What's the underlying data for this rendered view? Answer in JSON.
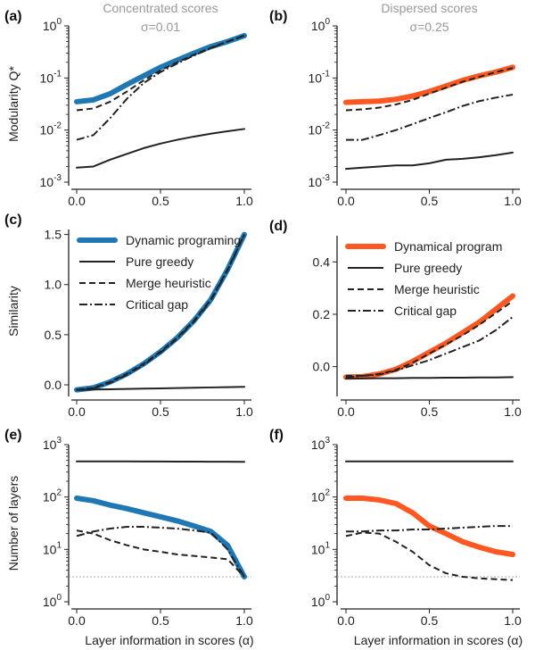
{
  "chart_data": [
    {
      "panel": "(a)",
      "type": "line",
      "title": "Concentrated scores",
      "subtitle": "σ=0.01",
      "ylabel": "Modularity Q*",
      "xlabel": "",
      "yscale": "log",
      "ylim": [
        0.001,
        1
      ],
      "yticks": [
        "10^0",
        "10^-1",
        "10^-2",
        "10^-3"
      ],
      "xticks": [
        "0.0",
        "0.5",
        "1.0"
      ],
      "x": [
        0,
        0.1,
        0.2,
        0.3,
        0.4,
        0.5,
        0.6,
        0.7,
        0.8,
        0.9,
        1.0
      ],
      "series": [
        {
          "name": "Dynamic programing",
          "style": "thick",
          "color": "#1f77b4",
          "values": [
            0.035,
            0.038,
            0.05,
            0.075,
            0.11,
            0.16,
            0.22,
            0.3,
            0.4,
            0.5,
            0.65
          ]
        },
        {
          "name": "Pure greedy",
          "style": "solid",
          "values": [
            0.0019,
            0.002,
            0.0027,
            0.0035,
            0.0045,
            0.0055,
            0.0065,
            0.0075,
            0.0085,
            0.0095,
            0.0105
          ]
        },
        {
          "name": "Merge heuristic",
          "style": "dashed",
          "values": [
            0.024,
            0.026,
            0.035,
            0.055,
            0.09,
            0.14,
            0.2,
            0.28,
            0.38,
            0.5,
            0.65
          ]
        },
        {
          "name": "Critical gap",
          "style": "dashdot",
          "values": [
            0.0065,
            0.008,
            0.017,
            0.04,
            0.08,
            0.13,
            0.19,
            0.27,
            0.37,
            0.5,
            0.65
          ]
        }
      ]
    },
    {
      "panel": "(b)",
      "type": "line",
      "title": "Dispersed scores",
      "subtitle": "σ=0.25",
      "ylabel": "",
      "xlabel": "",
      "yscale": "log",
      "ylim": [
        0.001,
        1
      ],
      "yticks": [
        "10^0",
        "10^-1",
        "10^-2",
        "10^-3"
      ],
      "xticks": [
        "0.0",
        "0.5",
        "1.0"
      ],
      "x": [
        0,
        0.1,
        0.2,
        0.3,
        0.4,
        0.5,
        0.6,
        0.7,
        0.8,
        0.9,
        1.0
      ],
      "series": [
        {
          "name": "Dynamical program",
          "style": "thick",
          "color": "#ff5722",
          "values": [
            0.034,
            0.035,
            0.036,
            0.039,
            0.045,
            0.055,
            0.07,
            0.09,
            0.11,
            0.13,
            0.16
          ]
        },
        {
          "name": "Pure greedy",
          "style": "solid",
          "values": [
            0.0018,
            0.0019,
            0.002,
            0.0021,
            0.0021,
            0.0023,
            0.0027,
            0.0028,
            0.003,
            0.0033,
            0.0037
          ]
        },
        {
          "name": "Merge heuristic",
          "style": "dashed",
          "values": [
            0.024,
            0.025,
            0.027,
            0.031,
            0.038,
            0.05,
            0.065,
            0.085,
            0.105,
            0.13,
            0.155
          ]
        },
        {
          "name": "Critical gap",
          "style": "dashdot",
          "values": [
            0.0065,
            0.0065,
            0.008,
            0.01,
            0.013,
            0.017,
            0.022,
            0.029,
            0.036,
            0.042,
            0.048
          ]
        }
      ]
    },
    {
      "panel": "(c)",
      "type": "line",
      "ylabel": "Similarity",
      "xlabel": "",
      "yscale": "linear",
      "ylim": [
        -0.08,
        1.55
      ],
      "yticks": [
        "0.0",
        "0.5",
        "1.0",
        "1.5"
      ],
      "xticks": [
        "0.0",
        "0.5",
        "1.0"
      ],
      "legend": "top-left",
      "x": [
        0,
        0.1,
        0.2,
        0.3,
        0.4,
        0.5,
        0.6,
        0.7,
        0.8,
        0.9,
        1.0
      ],
      "series": [
        {
          "name": "Dynamic programing",
          "style": "thick",
          "color": "#1f77b4",
          "values": [
            -0.05,
            -0.03,
            0.03,
            0.11,
            0.21,
            0.33,
            0.47,
            0.64,
            0.85,
            1.15,
            1.5
          ]
        },
        {
          "name": "Pure greedy",
          "style": "solid",
          "values": [
            -0.05,
            -0.047,
            -0.044,
            -0.041,
            -0.038,
            -0.035,
            -0.032,
            -0.029,
            -0.026,
            -0.023,
            -0.02
          ]
        },
        {
          "name": "Merge heuristic",
          "style": "dashed",
          "values": [
            -0.05,
            -0.03,
            0.03,
            0.11,
            0.21,
            0.33,
            0.47,
            0.64,
            0.85,
            1.15,
            1.5
          ]
        },
        {
          "name": "Critical gap",
          "style": "dashdot",
          "values": [
            -0.05,
            -0.035,
            0.02,
            0.1,
            0.2,
            0.32,
            0.46,
            0.63,
            0.84,
            1.14,
            1.5
          ]
        }
      ]
    },
    {
      "panel": "(d)",
      "type": "line",
      "ylabel": "",
      "xlabel": "",
      "yscale": "linear",
      "ylim": [
        -0.1,
        0.5
      ],
      "yticks": [
        "0.0",
        "0.2",
        "0.4"
      ],
      "xticks": [
        "0.0",
        "0.5",
        "1.0"
      ],
      "legend": "top-left",
      "x": [
        0,
        0.1,
        0.2,
        0.3,
        0.4,
        0.5,
        0.6,
        0.7,
        0.8,
        0.9,
        1.0
      ],
      "series": [
        {
          "name": "Dynamical program",
          "style": "thick",
          "color": "#ff5722",
          "values": [
            -0.04,
            -0.038,
            -0.028,
            -0.01,
            0.02,
            0.055,
            0.09,
            0.13,
            0.17,
            0.22,
            0.27
          ]
        },
        {
          "name": "Pure greedy",
          "style": "solid",
          "values": [
            -0.045,
            -0.045,
            -0.044,
            -0.044,
            -0.043,
            -0.043,
            -0.042,
            -0.042,
            -0.041,
            -0.041,
            -0.04
          ]
        },
        {
          "name": "Merge heuristic",
          "style": "dashed",
          "values": [
            -0.035,
            -0.035,
            -0.028,
            -0.012,
            0.015,
            0.05,
            0.085,
            0.12,
            0.16,
            0.205,
            0.25
          ]
        },
        {
          "name": "Critical gap",
          "style": "dashdot",
          "values": [
            -0.04,
            -0.035,
            -0.03,
            -0.015,
            0.005,
            0.025,
            0.05,
            0.075,
            0.1,
            0.14,
            0.19
          ]
        }
      ]
    },
    {
      "panel": "(e)",
      "type": "line",
      "ylabel": "Number of layers",
      "xlabel": "Layer information in scores (α)",
      "yscale": "log",
      "ylim": [
        1,
        1000
      ],
      "yticks": [
        "10^3",
        "10^2",
        "10^1",
        "10^0"
      ],
      "xticks": [
        "0.0",
        "0.5",
        "1.0"
      ],
      "reference_line": 3,
      "x": [
        0,
        0.1,
        0.2,
        0.3,
        0.4,
        0.5,
        0.6,
        0.7,
        0.8,
        0.9,
        1.0
      ],
      "series": [
        {
          "name": "Dynamic programing",
          "style": "thick",
          "color": "#1f77b4",
          "values": [
            95,
            85,
            70,
            60,
            50,
            42,
            35,
            28,
            22,
            12,
            3
          ]
        },
        {
          "name": "Pure greedy",
          "style": "solid",
          "values": [
            480,
            480,
            478,
            478,
            476,
            476,
            475,
            474,
            473,
            472,
            470
          ]
        },
        {
          "name": "Merge heuristic",
          "style": "dashed",
          "values": [
            23,
            20,
            15,
            12,
            10,
            9,
            8,
            7.5,
            7,
            6.5,
            3
          ]
        },
        {
          "name": "Critical gap",
          "style": "dashdot",
          "values": [
            18,
            22,
            25,
            27,
            27,
            26,
            25,
            23,
            21,
            10,
            3
          ]
        }
      ]
    },
    {
      "panel": "(f)",
      "type": "line",
      "ylabel": "",
      "xlabel": "Layer information in scores (α)",
      "yscale": "log",
      "ylim": [
        1,
        1000
      ],
      "yticks": [
        "10^3",
        "10^2",
        "10^1",
        "10^0"
      ],
      "xticks": [
        "0.0",
        "0.5",
        "1.0"
      ],
      "reference_line": 3,
      "x": [
        0,
        0.1,
        0.2,
        0.3,
        0.4,
        0.5,
        0.6,
        0.7,
        0.8,
        0.9,
        1.0
      ],
      "series": [
        {
          "name": "Dynamical program",
          "style": "thick",
          "color": "#ff5722",
          "values": [
            95,
            95,
            88,
            75,
            50,
            28,
            20,
            14,
            11,
            9,
            8
          ]
        },
        {
          "name": "Pure greedy",
          "style": "solid",
          "values": [
            480,
            480,
            480,
            480,
            480,
            480,
            480,
            480,
            480,
            480,
            480
          ]
        },
        {
          "name": "Merge heuristic",
          "style": "dashed",
          "values": [
            18,
            21,
            20,
            14,
            9,
            5,
            3.5,
            3,
            2.8,
            2.7,
            2.6
          ]
        },
        {
          "name": "Critical gap",
          "style": "dashdot",
          "values": [
            22,
            22,
            23,
            23,
            24,
            24,
            25,
            26,
            27,
            28,
            28
          ]
        }
      ]
    }
  ]
}
